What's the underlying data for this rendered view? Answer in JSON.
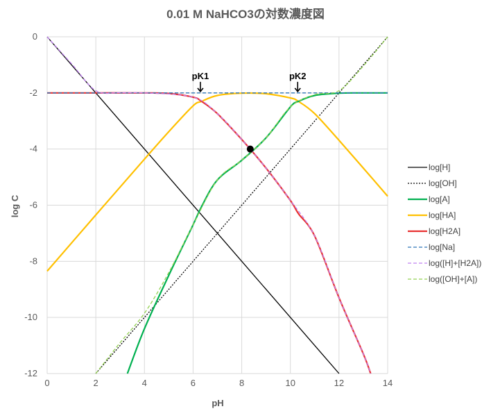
{
  "chart_data": {
    "type": "line",
    "title": "0.01 M NaHCO3の対数濃度図",
    "xlabel": "pH",
    "ylabel": "log C",
    "xlim": [
      0,
      14
    ],
    "ylim": [
      -12,
      0
    ],
    "xticks": [
      0,
      2,
      4,
      6,
      8,
      10,
      12,
      14
    ],
    "yticks": [
      0,
      -2,
      -4,
      -6,
      -8,
      -10,
      -12
    ],
    "xtick_labels": [
      "0",
      "2",
      "4",
      "6",
      "8",
      "10",
      "12",
      "14"
    ],
    "ytick_labels": [
      "0",
      "-2",
      "-4",
      "-6",
      "-8",
      "-10",
      "-12"
    ],
    "grid": true,
    "legend_position": "right",
    "params": {
      "C": 0.01,
      "pK1": 6.35,
      "pK2": 10.33
    },
    "series": [
      {
        "name": "log[H]",
        "color": "#000000",
        "dash": "solid",
        "x": [
          0,
          12
        ],
        "y": [
          0,
          -12
        ]
      },
      {
        "name": "log[OH]",
        "color": "#000000",
        "dash": "dotted",
        "x": [
          2,
          14
        ],
        "y": [
          -12,
          0
        ]
      },
      {
        "name": "log[A]",
        "color": "#00b050",
        "dash": "solid",
        "x": [
          3.3,
          4,
          5,
          6,
          6.35,
          7,
          8,
          9,
          10,
          10.33,
          11,
          12,
          13,
          14
        ],
        "y": [
          -12,
          -10.4,
          -8.5,
          -6.7,
          -6.05,
          -5.1,
          -4.4,
          -3.6,
          -2.5,
          -2.3,
          -2.09,
          -2.01,
          -2.0,
          -2.0
        ]
      },
      {
        "name": "log[HA]",
        "color": "#ffc000",
        "dash": "solid",
        "x": [
          0,
          2,
          4,
          5,
          6,
          6.35,
          7,
          8,
          9,
          10,
          10.33,
          11,
          12,
          13,
          14
        ],
        "y": [
          -8.35,
          -6.35,
          -4.36,
          -3.38,
          -2.46,
          -2.3,
          -2.09,
          -2.01,
          -2.03,
          -2.18,
          -2.3,
          -2.74,
          -3.69,
          -4.68,
          -5.68
        ]
      },
      {
        "name": "log[H2A]",
        "color": "#e83030",
        "dash": "solid",
        "x": [
          0,
          2,
          4,
          5,
          6,
          6.35,
          7,
          8,
          9,
          10,
          10.33,
          11,
          12,
          13,
          13.3
        ],
        "y": [
          -2.0,
          -2.0,
          -2.0,
          -2.02,
          -2.15,
          -2.3,
          -2.74,
          -3.66,
          -4.68,
          -5.83,
          -6.3,
          -7.1,
          -9.3,
          -11.3,
          -12
        ]
      },
      {
        "name": "log[Na]",
        "color": "#2e75b6",
        "dash": "dashed",
        "x": [
          0,
          14
        ],
        "y": [
          -2,
          -2
        ]
      },
      {
        "name": "log([H]+[H2A])",
        "color": "#c080f0",
        "dash": "dashed",
        "x": [
          0,
          1,
          2,
          3,
          4,
          6,
          7,
          8,
          9,
          10,
          11,
          12,
          13,
          13.3
        ],
        "y": [
          0,
          -0.96,
          -1.92,
          -1.99,
          -2.0,
          -2.15,
          -2.74,
          -3.66,
          -4.68,
          -5.83,
          -7.1,
          -9.3,
          -11.3,
          -12
        ]
      },
      {
        "name": "log([OH]+[A])",
        "color": "#92d050",
        "dash": "dashed",
        "x": [
          2,
          3,
          4,
          5,
          6,
          7,
          8,
          9,
          10,
          11,
          12,
          13,
          14
        ],
        "y": [
          -12,
          -10.9,
          -9.85,
          -8.4,
          -6.7,
          -5.1,
          -4.4,
          -3.6,
          -2.5,
          -2.06,
          -1.92,
          -1.04,
          0
        ]
      }
    ],
    "points": [
      {
        "x": 8.35,
        "y": -4.0,
        "color": "#000000"
      }
    ],
    "annotations": [
      {
        "text": "pK1",
        "x": 6.3,
        "y": -2
      },
      {
        "text": "pK2",
        "x": 10.3,
        "y": -2
      }
    ]
  }
}
